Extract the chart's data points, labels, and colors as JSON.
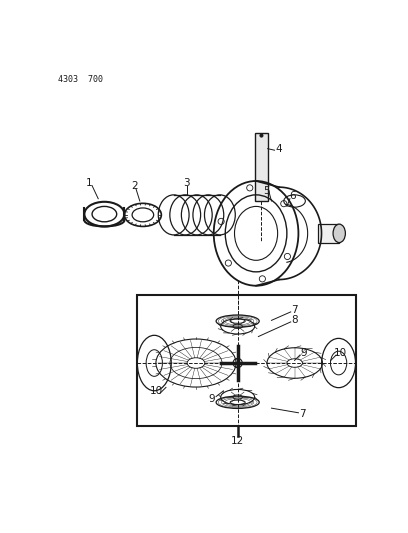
{
  "title_code": "4303  700",
  "bg_color": "#ffffff",
  "line_color": "#1a1a1a",
  "fig_width": 4.08,
  "fig_height": 5.33,
  "dpi": 100
}
